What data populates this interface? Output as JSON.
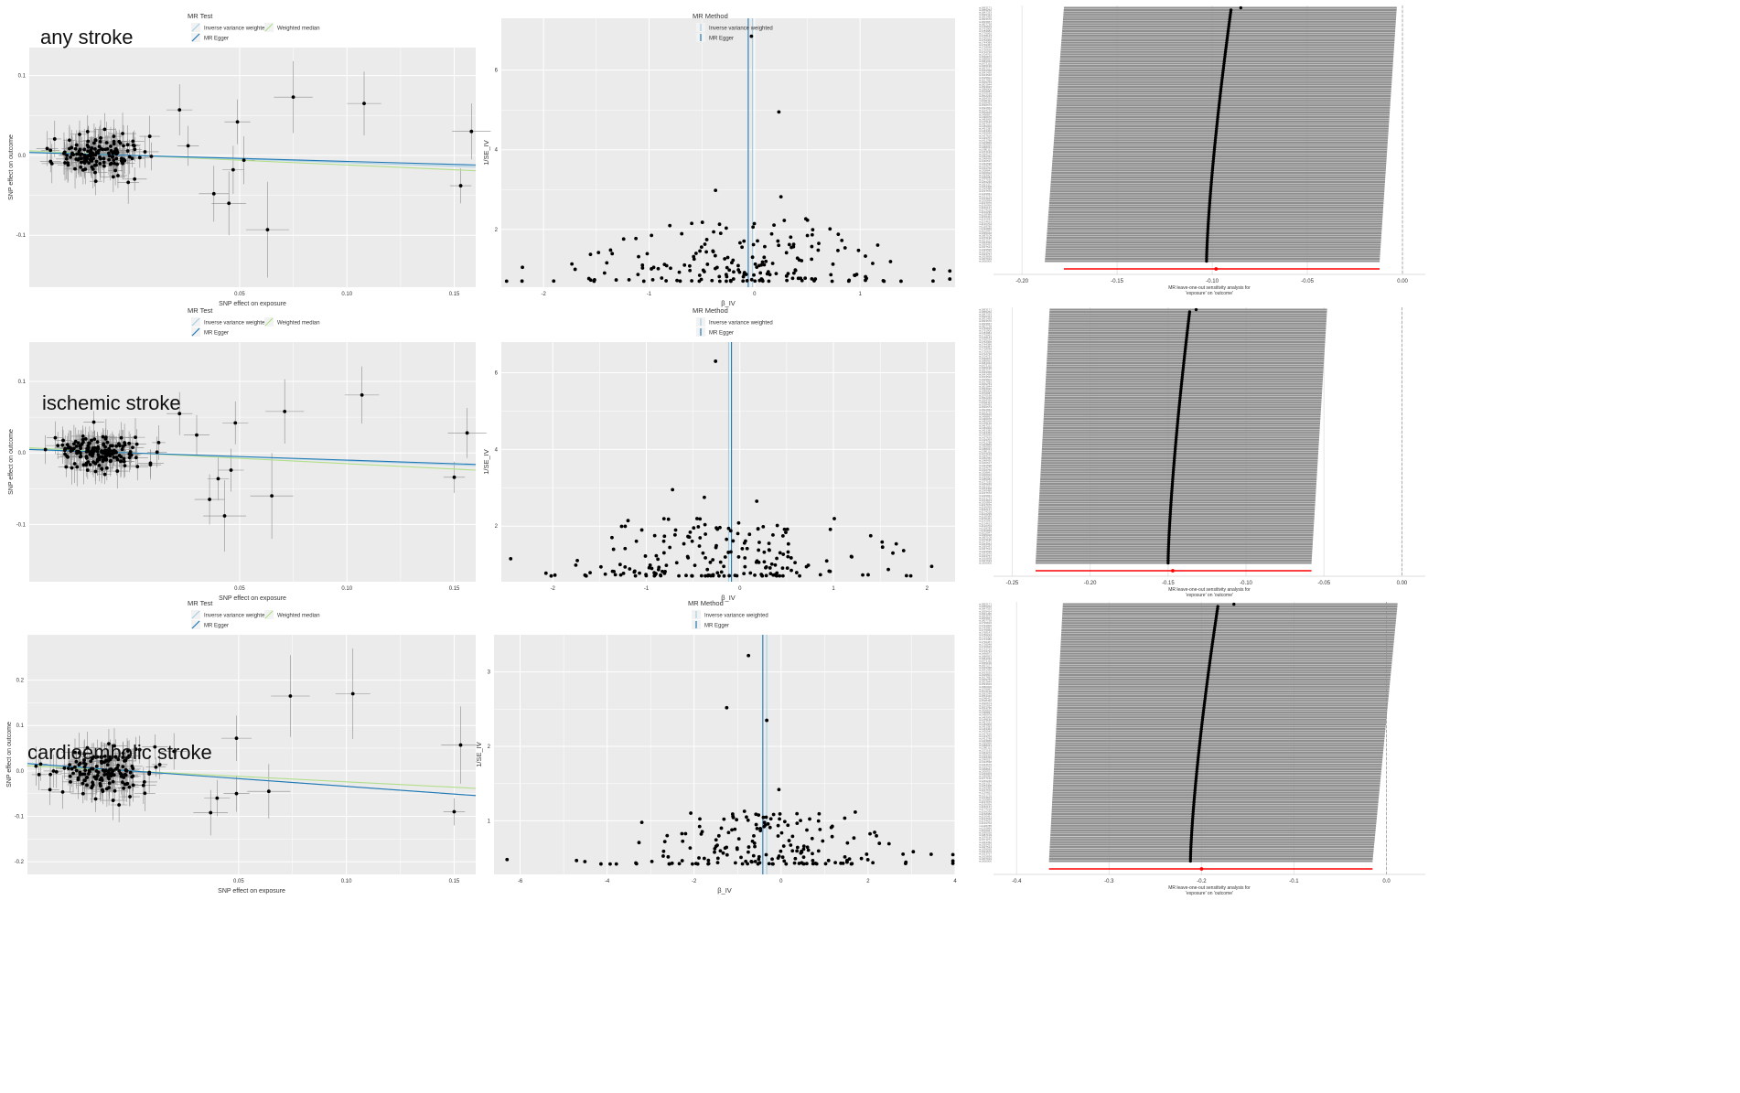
{
  "rows": [
    {
      "title": "any stroke",
      "scatter": {
        "legend_title": "MR Test",
        "legend_items": [
          "Inverse variance weighted",
          "Weighted median",
          "MR Egger"
        ],
        "xlabel": "SNP effect on exposure",
        "ylabel": "SNP effect on outcome",
        "xlim": [
          -0.048,
          0.16
        ],
        "ylim": [
          -0.165,
          0.135
        ],
        "xticks": [
          0.05,
          0.1,
          0.15
        ],
        "xtick_labels": [
          "0.05",
          "0.10",
          "0.15"
        ],
        "yticks": [
          -0.1,
          0.0,
          0.1
        ],
        "ytick_labels": [
          "-0.1",
          "0.0",
          "0.1"
        ],
        "lines": {
          "ivw": -0.09,
          "egger": -0.075,
          "wm": -0.12
        },
        "highlights": [
          {
            "x": 0.022,
            "y": 0.057,
            "ex": 0.006,
            "ey": 0.032
          },
          {
            "x": 0.026,
            "y": 0.012,
            "ex": 0.005,
            "ey": 0.025
          },
          {
            "x": 0.038,
            "y": -0.048,
            "ex": 0.007,
            "ey": 0.035
          },
          {
            "x": 0.045,
            "y": -0.06,
            "ex": 0.008,
            "ey": 0.04
          },
          {
            "x": 0.047,
            "y": -0.018,
            "ex": 0.005,
            "ey": 0.03
          },
          {
            "x": 0.049,
            "y": 0.042,
            "ex": 0.006,
            "ey": 0.028
          },
          {
            "x": 0.052,
            "y": -0.006,
            "ex": 0.005,
            "ey": 0.03
          },
          {
            "x": 0.063,
            "y": -0.093,
            "ex": 0.01,
            "ey": 0.06
          },
          {
            "x": 0.075,
            "y": 0.073,
            "ex": 0.009,
            "ey": 0.045
          },
          {
            "x": 0.108,
            "y": 0.065,
            "ex": 0.008,
            "ey": 0.04
          },
          {
            "x": 0.153,
            "y": -0.038,
            "ex": 0.005,
            "ey": 0.022
          },
          {
            "x": 0.158,
            "y": 0.03,
            "ex": 0.009,
            "ey": 0.035
          }
        ],
        "cluster": {
          "n": 150,
          "cx": -0.015,
          "sx": 0.01,
          "sy": 0.012,
          "ex": 0.004,
          "ey": 0.018,
          "seed": 11
        }
      },
      "funnel": {
        "legend_title": "MR Method",
        "legend_items": [
          "Inverse variance weighted",
          "MR Egger"
        ],
        "xlabel": "β_IV",
        "ylabel": "1/SE_IV",
        "xlim": [
          -2.4,
          1.9
        ],
        "ylim": [
          0.55,
          7.3
        ],
        "xticks": [
          -2,
          -1,
          0,
          1
        ],
        "xtick_labels": [
          "-2",
          "-1",
          "0",
          "1"
        ],
        "yticks": [
          2,
          4,
          6
        ],
        "ytick_labels": [
          "2",
          "4",
          "6"
        ],
        "lines": {
          "ivw": -0.02,
          "egger": -0.06
        },
        "highlights": [
          {
            "x": -0.03,
            "y": 6.85
          },
          {
            "x": 0.23,
            "y": 4.95
          },
          {
            "x": -0.37,
            "y": 2.98
          },
          {
            "x": 0.25,
            "y": 2.82
          },
          {
            "x": -2.2,
            "y": 1.05
          },
          {
            "x": 1.7,
            "y": 1.0
          }
        ],
        "cluster": {
          "n": 190,
          "center": -0.1,
          "spread": 0.78,
          "ymin": 0.7,
          "ymax": 2.3,
          "seed": 21
        }
      },
      "loo": {
        "xlabel": "MR leave-one-out sensitivity analysis for",
        "xlabel2": "'exposure' on 'outcome'",
        "xlim": [
          -0.215,
          0.012
        ],
        "xticks": [
          -0.2,
          -0.15,
          -0.1,
          -0.05,
          0.0
        ],
        "xtick_labels": [
          "-0.20",
          "-0.15",
          "-0.10",
          "-0.05",
          "0.00"
        ],
        "zero": 0.0,
        "n_snps": 110,
        "est_bottom": -0.103,
        "est_top": -0.09,
        "lo_bottom": -0.188,
        "lo_top": -0.178,
        "hi_bottom": -0.012,
        "hi_top": -0.003,
        "all_est": -0.098,
        "all_lo": -0.178,
        "all_hi": -0.012,
        "extra_top_x": -0.085
      }
    },
    {
      "title": "ischemic stroke",
      "scatter": {
        "legend_title": "MR Test",
        "legend_items": [
          "Inverse variance weighted",
          "Weighted median",
          "MR Egger"
        ],
        "xlabel": "SNP effect on exposure",
        "ylabel": "SNP effect on outcome",
        "xlim": [
          -0.048,
          0.16
        ],
        "ylim": [
          -0.18,
          0.155
        ],
        "xticks": [
          0.05,
          0.1,
          0.15
        ],
        "xtick_labels": [
          "0.05",
          "0.10",
          "0.15"
        ],
        "yticks": [
          -0.1,
          0.0,
          0.1
        ],
        "ytick_labels": [
          "-0.1",
          "0.0",
          "0.1"
        ],
        "lines": {
          "ivw": -0.11,
          "egger": -0.1,
          "wm": -0.15
        },
        "highlights": [
          {
            "x": 0.022,
            "y": 0.055,
            "ex": 0.006,
            "ey": 0.03
          },
          {
            "x": 0.03,
            "y": 0.025,
            "ex": 0.006,
            "ey": 0.028
          },
          {
            "x": 0.036,
            "y": -0.065,
            "ex": 0.007,
            "ey": 0.035
          },
          {
            "x": 0.04,
            "y": -0.036,
            "ex": 0.005,
            "ey": 0.03
          },
          {
            "x": 0.043,
            "y": -0.088,
            "ex": 0.01,
            "ey": 0.05
          },
          {
            "x": 0.046,
            "y": -0.024,
            "ex": 0.006,
            "ey": 0.03
          },
          {
            "x": 0.048,
            "y": 0.042,
            "ex": 0.006,
            "ey": 0.03
          },
          {
            "x": 0.065,
            "y": -0.06,
            "ex": 0.01,
            "ey": 0.06
          },
          {
            "x": 0.071,
            "y": 0.058,
            "ex": 0.009,
            "ey": 0.045
          },
          {
            "x": 0.107,
            "y": 0.081,
            "ex": 0.008,
            "ey": 0.04
          },
          {
            "x": 0.15,
            "y": -0.034,
            "ex": 0.005,
            "ey": 0.022
          },
          {
            "x": 0.156,
            "y": 0.028,
            "ex": 0.009,
            "ey": 0.035
          }
        ],
        "cluster": {
          "n": 170,
          "cx": -0.015,
          "sx": 0.01,
          "sy": 0.013,
          "ex": 0.004,
          "ey": 0.018,
          "seed": 13
        }
      },
      "funnel": {
        "legend_title": "MR Method",
        "legend_items": [
          "Inverse variance weighted",
          "MR Egger"
        ],
        "xlabel": "β_IV",
        "ylabel": "1/SE_IV",
        "xlim": [
          -2.55,
          2.3
        ],
        "ylim": [
          0.55,
          6.8
        ],
        "xticks": [
          -2,
          -1,
          0,
          1,
          2
        ],
        "xtick_labels": [
          "-2",
          "-1",
          "0",
          "1",
          "2"
        ],
        "yticks": [
          2,
          4,
          6
        ],
        "ytick_labels": [
          "2",
          "4",
          "6"
        ],
        "lines": {
          "ivw": -0.12,
          "egger": -0.09
        },
        "highlights": [
          {
            "x": -0.26,
            "y": 6.3
          },
          {
            "x": -0.72,
            "y": 2.95
          },
          {
            "x": -0.38,
            "y": 2.75
          },
          {
            "x": 0.18,
            "y": 2.65
          },
          {
            "x": -2.45,
            "y": 1.15
          },
          {
            "x": 2.05,
            "y": 0.95
          }
        ],
        "cluster": {
          "n": 200,
          "center": -0.08,
          "spread": 0.8,
          "ymin": 0.7,
          "ymax": 2.2,
          "seed": 23
        }
      },
      "loo": {
        "xlabel": "MR leave-one-out sensitivity analysis for",
        "xlabel2": "'exposure' on 'outcome'",
        "xlim": [
          -0.262,
          0.015
        ],
        "xticks": [
          -0.25,
          -0.2,
          -0.15,
          -0.1,
          -0.05,
          0.0
        ],
        "xtick_labels": [
          "-0.25",
          "-0.20",
          "-0.15",
          "-0.10",
          "-0.05",
          "0.00"
        ],
        "zero": 0.0,
        "n_snps": 110,
        "est_bottom": -0.15,
        "est_top": -0.136,
        "lo_bottom": -0.235,
        "lo_top": -0.226,
        "hi_bottom": -0.058,
        "hi_top": -0.048,
        "all_est": -0.147,
        "all_lo": -0.235,
        "all_hi": -0.058,
        "extra_top_x": -0.132
      }
    },
    {
      "title": "cardioembolic stroke",
      "scatter": {
        "legend_title": "MR Test",
        "legend_items": [
          "Inverse variance weighted",
          "Weighted median",
          "MR Egger"
        ],
        "xlabel": "SNP effect on exposure",
        "ylabel": "SNP effect on outcome",
        "xlim": [
          -0.048,
          0.16
        ],
        "ylim": [
          -0.228,
          0.3
        ],
        "xticks": [
          0.05,
          0.1,
          0.15
        ],
        "xtick_labels": [
          "0.05",
          "0.10",
          "0.15"
        ],
        "yticks": [
          -0.2,
          -0.1,
          0.0,
          0.1,
          0.2
        ],
        "ytick_labels": [
          "-0.2",
          "-0.1",
          "0.0",
          "0.1",
          "0.2"
        ],
        "lines": {
          "ivw": -0.34,
          "egger": -0.34,
          "wm": -0.24
        },
        "highlights": [
          {
            "x": 0.02,
            "y": 0.043,
            "ex": 0.006,
            "ey": 0.04
          },
          {
            "x": 0.037,
            "y": -0.092,
            "ex": 0.008,
            "ey": 0.05
          },
          {
            "x": 0.04,
            "y": -0.06,
            "ex": 0.006,
            "ey": 0.04
          },
          {
            "x": 0.049,
            "y": 0.072,
            "ex": 0.007,
            "ey": 0.05
          },
          {
            "x": 0.049,
            "y": -0.05,
            "ex": 0.006,
            "ey": 0.04
          },
          {
            "x": 0.064,
            "y": -0.045,
            "ex": 0.01,
            "ey": 0.06
          },
          {
            "x": 0.074,
            "y": 0.165,
            "ex": 0.009,
            "ey": 0.09
          },
          {
            "x": 0.103,
            "y": 0.17,
            "ex": 0.008,
            "ey": 0.1
          },
          {
            "x": 0.15,
            "y": -0.09,
            "ex": 0.005,
            "ey": 0.03
          },
          {
            "x": 0.153,
            "y": 0.057,
            "ex": 0.009,
            "ey": 0.085
          }
        ],
        "cluster": {
          "n": 160,
          "cx": -0.015,
          "sx": 0.01,
          "sy": 0.025,
          "ex": 0.004,
          "ey": 0.03,
          "seed": 17
        }
      },
      "funnel": {
        "legend_title": "MR Method",
        "legend_items": [
          "Inverse variance weighted",
          "MR Egger"
        ],
        "xlabel": "β_IV",
        "ylabel": "1/SE_IV",
        "xlim": [
          -6.6,
          4.0
        ],
        "ylim": [
          0.28,
          3.5
        ],
        "xticks": [
          -6,
          -4,
          -2,
          0,
          2,
          4
        ],
        "xtick_labels": [
          "-6",
          "-4",
          "-2",
          "0",
          "2",
          "4"
        ],
        "yticks": [
          1,
          2,
          3
        ],
        "ytick_labels": [
          "1",
          "2",
          "3"
        ],
        "lines": {
          "ivw": -0.33,
          "egger": -0.42
        },
        "highlights": [
          {
            "x": -0.75,
            "y": 3.22
          },
          {
            "x": -1.25,
            "y": 2.52
          },
          {
            "x": -0.33,
            "y": 2.35
          },
          {
            "x": -6.3,
            "y": 0.48
          },
          {
            "x": 3.45,
            "y": 0.55
          },
          {
            "x": -0.05,
            "y": 1.42
          }
        ],
        "cluster": {
          "n": 190,
          "center": -0.25,
          "spread": 1.55,
          "ymin": 0.42,
          "ymax": 1.15,
          "seed": 29
        }
      },
      "loo": {
        "xlabel": "MR leave-one-out sensitivity analysis for",
        "xlabel2": "'exposure' on 'outcome'",
        "xlim": [
          -0.425,
          0.042
        ],
        "xticks": [
          -0.4,
          -0.3,
          -0.2,
          -0.1,
          0.0
        ],
        "xtick_labels": [
          "-0.4",
          "-0.3",
          "-0.2",
          "-0.1",
          "0.0"
        ],
        "zero": 0.0,
        "n_snps": 110,
        "est_bottom": -0.212,
        "est_top": -0.182,
        "lo_bottom": -0.365,
        "lo_top": -0.35,
        "hi_bottom": -0.015,
        "hi_top": 0.012,
        "all_est": -0.2,
        "all_lo": -0.365,
        "all_hi": -0.015,
        "extra_top_x": -0.165
      }
    }
  ],
  "colors": {
    "panel_bg": "#ebebeb",
    "grid": "#ffffff",
    "point": "#000000",
    "errorbar": "#8c8c8c",
    "ivw": "#a6cee3",
    "egger": "#1f78b4",
    "wm": "#b2df8a",
    "loo_bar": "#8f8f8f",
    "loo_all": "#ff0000",
    "zero_line": "#9e9e9e"
  }
}
